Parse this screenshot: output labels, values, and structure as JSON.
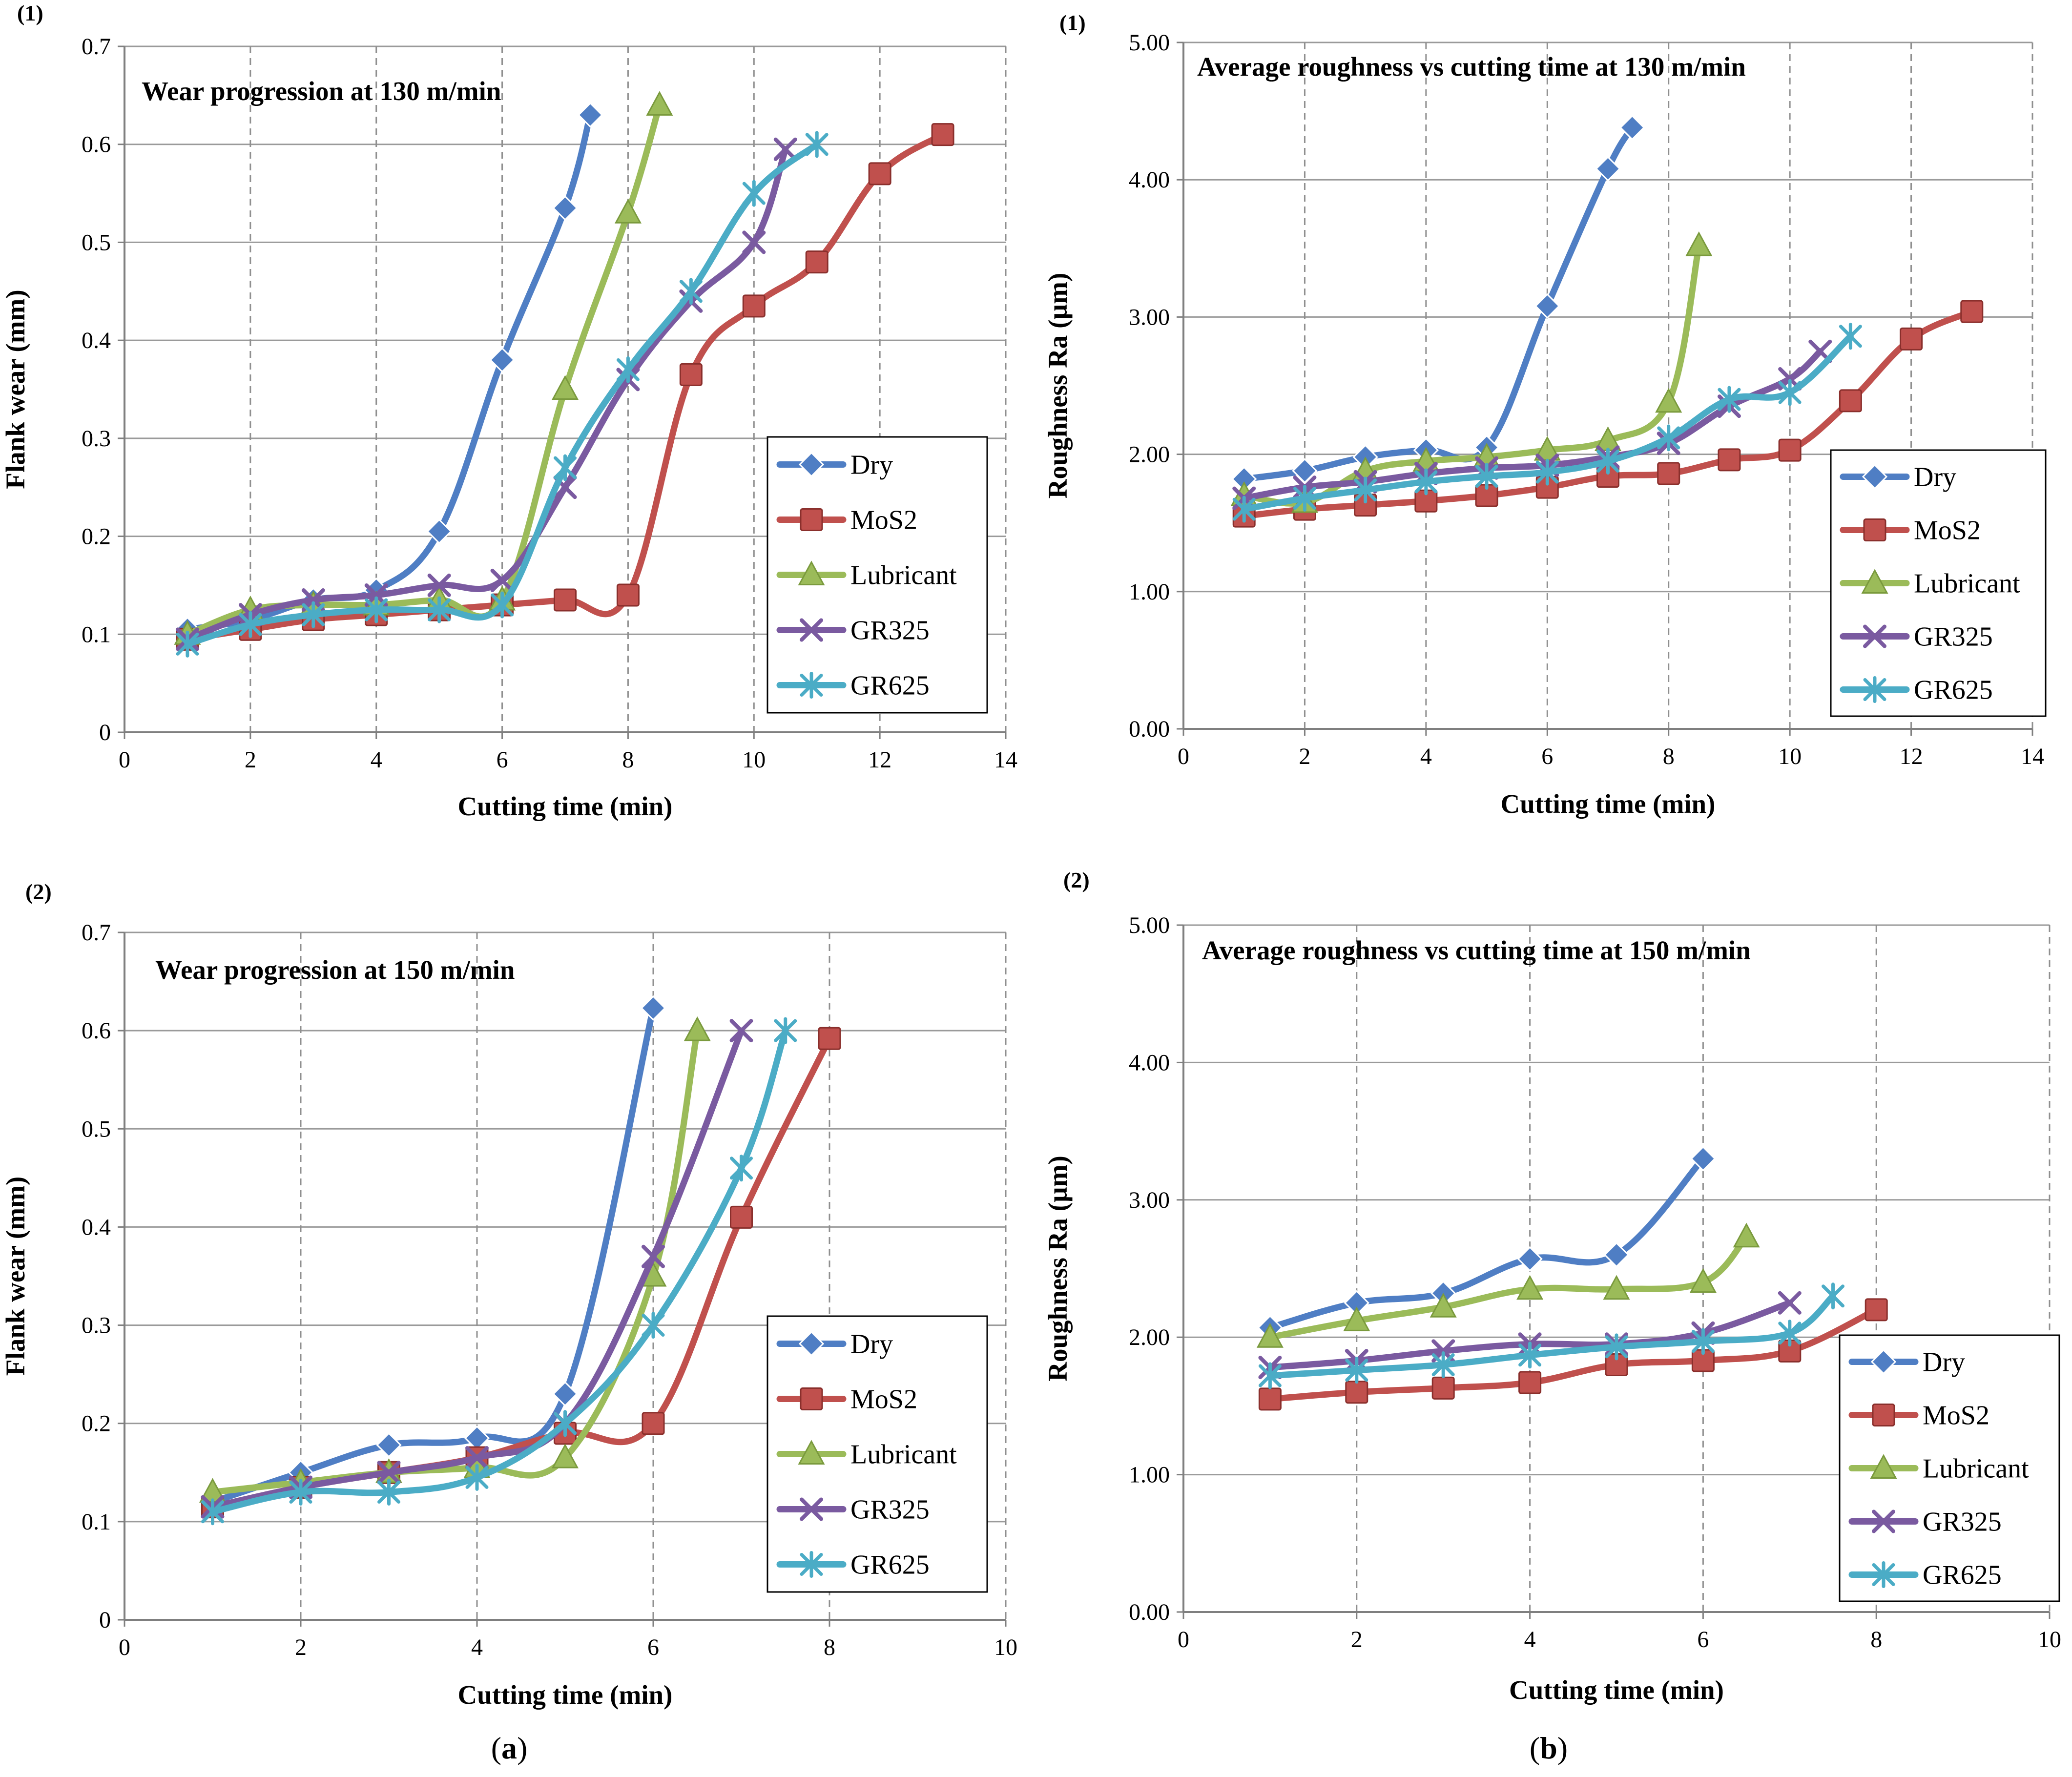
{
  "subfigure_labels": {
    "a": {
      "open": "(",
      "letter": "a",
      "close": ")"
    },
    "b": {
      "open": "(",
      "letter": "b",
      "close": ")"
    }
  },
  "chart_data": [
    {
      "id": "wear130",
      "panel_label": "(1)",
      "type": "line",
      "title": "Wear progression at 130 m/min",
      "xlabel": "Cutting time (min)",
      "ylabel": "Flank wear (mm)",
      "xlim": [
        0,
        14
      ],
      "ylim": [
        0,
        0.7
      ],
      "xticks": [
        0,
        2,
        4,
        6,
        8,
        10,
        12,
        14
      ],
      "yticks": [
        0,
        0.1,
        0.2,
        0.3,
        0.4,
        0.5,
        0.6,
        0.7
      ],
      "xtick_labels": [
        "0",
        "2",
        "4",
        "6",
        "8",
        "10",
        "12",
        "14"
      ],
      "ytick_labels": [
        "0",
        "0.1",
        "0.2",
        "0.3",
        "0.4",
        "0.5",
        "0.6",
        "0.7"
      ],
      "grid": {
        "x": "dashed",
        "y": "solid"
      },
      "legend_position": "lower-right",
      "series": [
        {
          "name": "Dry",
          "x": [
            1,
            2,
            3,
            4,
            5,
            6,
            7,
            7.4
          ],
          "values": [
            0.105,
            0.115,
            0.135,
            0.145,
            0.205,
            0.38,
            0.535,
            0.63
          ]
        },
        {
          "name": "MoS2",
          "x": [
            1,
            2,
            3,
            4,
            5,
            6,
            7,
            8,
            9,
            10,
            11,
            12,
            13
          ],
          "values": [
            0.095,
            0.105,
            0.115,
            0.12,
            0.125,
            0.13,
            0.135,
            0.14,
            0.365,
            0.435,
            0.48,
            0.57,
            0.61
          ]
        },
        {
          "name": "Lubricant",
          "x": [
            1,
            2,
            3,
            4,
            5,
            6,
            7,
            8,
            8.5
          ],
          "values": [
            0.1,
            0.125,
            0.13,
            0.13,
            0.135,
            0.135,
            0.35,
            0.53,
            0.64
          ]
        },
        {
          "name": "GR325",
          "x": [
            1,
            2,
            3,
            4,
            5,
            6,
            7,
            8,
            9,
            10,
            10.5
          ],
          "values": [
            0.095,
            0.12,
            0.135,
            0.14,
            0.15,
            0.155,
            0.25,
            0.36,
            0.44,
            0.5,
            0.595
          ]
        },
        {
          "name": "GR625",
          "x": [
            1,
            2,
            3,
            4,
            5,
            6,
            7,
            8,
            9,
            10,
            11
          ],
          "values": [
            0.09,
            0.11,
            0.12,
            0.125,
            0.125,
            0.13,
            0.27,
            0.37,
            0.45,
            0.55,
            0.6
          ]
        }
      ]
    },
    {
      "id": "rough130",
      "panel_label": "(1)",
      "type": "line",
      "title": "Average roughness vs cutting time at 130 m/min",
      "xlabel": "Cutting time (min)",
      "ylabel": "Roughness Ra (µm)",
      "xlim": [
        0,
        14
      ],
      "ylim": [
        0,
        5
      ],
      "xticks": [
        0,
        2,
        4,
        6,
        8,
        10,
        12,
        14
      ],
      "yticks": [
        0,
        1,
        2,
        3,
        4,
        5
      ],
      "xtick_labels": [
        "0",
        "2",
        "4",
        "6",
        "8",
        "10",
        "12",
        "14"
      ],
      "ytick_labels": [
        "0.00",
        "1.00",
        "2.00",
        "3.00",
        "4.00",
        "5.00"
      ],
      "grid": {
        "x": "dashed",
        "y": "solid"
      },
      "legend_position": "lower-right",
      "series": [
        {
          "name": "Dry",
          "x": [
            1,
            2,
            3,
            4,
            5,
            6,
            7,
            7.4
          ],
          "values": [
            1.82,
            1.88,
            1.98,
            2.03,
            2.05,
            3.08,
            4.08,
            4.38
          ]
        },
        {
          "name": "MoS2",
          "x": [
            1,
            2,
            3,
            4,
            5,
            6,
            7,
            8,
            9,
            10,
            11,
            12,
            13
          ],
          "values": [
            1.55,
            1.6,
            1.63,
            1.66,
            1.7,
            1.76,
            1.84,
            1.86,
            1.96,
            2.03,
            2.39,
            2.84,
            3.04
          ]
        },
        {
          "name": "Lubricant",
          "x": [
            1,
            2,
            3,
            4,
            5,
            6,
            7,
            8,
            8.5
          ],
          "values": [
            1.7,
            1.65,
            1.88,
            1.95,
            1.98,
            2.03,
            2.1,
            2.38,
            3.52
          ]
        },
        {
          "name": "GR325",
          "x": [
            1,
            2,
            3,
            4,
            5,
            6,
            7,
            8,
            9,
            10,
            10.5
          ],
          "values": [
            1.68,
            1.76,
            1.8,
            1.86,
            1.9,
            1.92,
            1.98,
            2.08,
            2.35,
            2.55,
            2.75
          ]
        },
        {
          "name": "GR625",
          "x": [
            1,
            2,
            3,
            4,
            5,
            6,
            7,
            8,
            9,
            10,
            11
          ],
          "values": [
            1.6,
            1.68,
            1.74,
            1.8,
            1.84,
            1.87,
            1.95,
            2.12,
            2.4,
            2.45,
            2.86
          ]
        }
      ]
    },
    {
      "id": "wear150",
      "panel_label": "(2)",
      "type": "line",
      "title": "Wear progression at 150 m/min",
      "xlabel": "Cutting time (min)",
      "ylabel": "Flank wear (mm)",
      "xlim": [
        0,
        10
      ],
      "ylim": [
        0,
        0.7
      ],
      "xticks": [
        0,
        2,
        4,
        6,
        8,
        10
      ],
      "yticks": [
        0,
        0.1,
        0.2,
        0.3,
        0.4,
        0.5,
        0.6,
        0.7
      ],
      "xtick_labels": [
        "0",
        "2",
        "4",
        "6",
        "8",
        "10"
      ],
      "ytick_labels": [
        "0",
        "0.1",
        "0.2",
        "0.3",
        "0.4",
        "0.5",
        "0.6",
        "0.7"
      ],
      "grid": {
        "x": "dashed",
        "y": "solid"
      },
      "legend_position": "lower-right",
      "series": [
        {
          "name": "Dry",
          "x": [
            1,
            2,
            3,
            4,
            5,
            6
          ],
          "values": [
            0.12,
            0.15,
            0.178,
            0.185,
            0.23,
            0.623
          ]
        },
        {
          "name": "MoS2",
          "x": [
            1,
            2,
            3,
            4,
            5,
            6,
            7,
            8
          ],
          "values": [
            0.115,
            0.135,
            0.15,
            0.165,
            0.19,
            0.2,
            0.41,
            0.592
          ]
        },
        {
          "name": "Lubricant",
          "x": [
            1,
            2,
            3,
            4,
            5,
            6,
            6.5
          ],
          "values": [
            0.13,
            0.14,
            0.15,
            0.155,
            0.165,
            0.35,
            0.6
          ]
        },
        {
          "name": "GR325",
          "x": [
            1,
            2,
            3,
            4,
            5,
            6,
            7
          ],
          "values": [
            0.115,
            0.135,
            0.15,
            0.165,
            0.2,
            0.37,
            0.6
          ]
        },
        {
          "name": "GR625",
          "x": [
            1,
            2,
            3,
            4,
            5,
            6,
            7,
            7.5
          ],
          "values": [
            0.11,
            0.13,
            0.13,
            0.145,
            0.2,
            0.3,
            0.46,
            0.6
          ]
        }
      ]
    },
    {
      "id": "rough150",
      "panel_label": "(2)",
      "type": "line",
      "title": "Average roughness vs cutting time at 150 m/min",
      "xlabel": "Cutting time (min)",
      "ylabel": "Roughness Ra (µm)",
      "xlim": [
        0,
        10
      ],
      "ylim": [
        0,
        5
      ],
      "xticks": [
        0,
        2,
        4,
        6,
        8,
        10
      ],
      "yticks": [
        0,
        1,
        2,
        3,
        4,
        5
      ],
      "xtick_labels": [
        "0",
        "2",
        "4",
        "6",
        "8",
        "10"
      ],
      "ytick_labels": [
        "0.00",
        "1.00",
        "2.00",
        "3.00",
        "4.00",
        "5.00"
      ],
      "grid": {
        "x": "dashed",
        "y": "solid"
      },
      "legend_position": "lower-right",
      "series": [
        {
          "name": "Dry",
          "x": [
            1,
            2,
            3,
            4,
            5,
            6
          ],
          "values": [
            2.07,
            2.25,
            2.32,
            2.57,
            2.6,
            3.3
          ]
        },
        {
          "name": "MoS2",
          "x": [
            1,
            2,
            3,
            4,
            5,
            6,
            7,
            8
          ],
          "values": [
            1.55,
            1.6,
            1.63,
            1.67,
            1.8,
            1.83,
            1.9,
            2.2
          ]
        },
        {
          "name": "Lubricant",
          "x": [
            1,
            2,
            3,
            4,
            5,
            6,
            6.5
          ],
          "values": [
            2.0,
            2.12,
            2.22,
            2.35,
            2.35,
            2.4,
            2.73
          ]
        },
        {
          "name": "GR325",
          "x": [
            1,
            2,
            3,
            4,
            5,
            6,
            7
          ],
          "values": [
            1.78,
            1.83,
            1.9,
            1.95,
            1.95,
            2.03,
            2.25
          ]
        },
        {
          "name": "GR625",
          "x": [
            1,
            2,
            3,
            4,
            5,
            6,
            7,
            7.5
          ],
          "values": [
            1.72,
            1.76,
            1.8,
            1.87,
            1.93,
            1.97,
            2.03,
            2.3
          ]
        }
      ]
    }
  ],
  "series_styles": {
    "Dry": {
      "color": "#4f7ec4",
      "marker": "diamond"
    },
    "MoS2": {
      "color": "#c0504d",
      "marker": "square"
    },
    "Lubricant": {
      "color": "#9bbb59",
      "marker": "triangle"
    },
    "GR325": {
      "color": "#7a5aa0",
      "marker": "x"
    },
    "GR625": {
      "color": "#4bacc6",
      "marker": "star"
    }
  }
}
